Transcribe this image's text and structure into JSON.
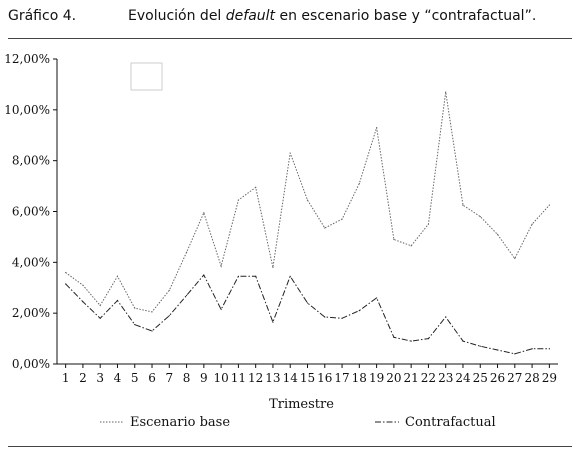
{
  "figure": {
    "label": "Gráfico 4.",
    "title_before": "Evolución del ",
    "title_italic": "default",
    "title_after": " en escenario base y “contrafactual”."
  },
  "chart_data": {
    "type": "line",
    "xlabel": "Trimestre",
    "ylabel": "",
    "x": [
      1,
      2,
      3,
      4,
      5,
      6,
      7,
      8,
      9,
      10,
      11,
      12,
      13,
      14,
      15,
      16,
      17,
      18,
      19,
      20,
      21,
      22,
      23,
      24,
      25,
      26,
      27,
      28,
      29
    ],
    "ylim": [
      0,
      12
    ],
    "yticks": [
      "0,00%",
      "2,00%",
      "4,00%",
      "6,00%",
      "8,00%",
      "10,00%",
      "12,00%"
    ],
    "grid": false,
    "legend_position": "bottom",
    "series": [
      {
        "name": "Escenario base",
        "style": "dotted",
        "color": "#666666",
        "values": [
          3.6,
          3.1,
          2.3,
          3.45,
          2.2,
          2.05,
          2.9,
          4.4,
          5.95,
          3.85,
          6.45,
          6.95,
          3.8,
          8.3,
          6.45,
          5.35,
          5.7,
          7.1,
          9.3,
          4.9,
          4.65,
          5.5,
          10.7,
          6.25,
          5.8,
          5.1,
          4.15,
          5.5,
          6.25
        ]
      },
      {
        "name": "Contrafactual",
        "style": "dashdot",
        "color": "#222222",
        "values": [
          3.15,
          2.45,
          1.8,
          2.5,
          1.55,
          1.3,
          1.9,
          2.7,
          3.5,
          2.15,
          3.45,
          3.45,
          1.65,
          3.45,
          2.4,
          1.85,
          1.8,
          2.1,
          2.6,
          1.05,
          0.9,
          1.0,
          1.85,
          0.9,
          0.7,
          0.55,
          0.4,
          0.6,
          0.6
        ]
      }
    ]
  }
}
